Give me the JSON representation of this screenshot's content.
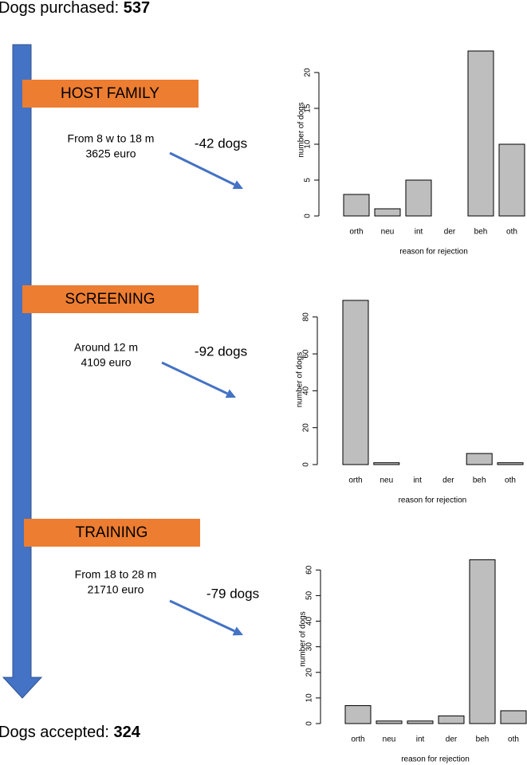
{
  "header": {
    "purchased_label": "Dogs purchased:",
    "purchased_value": "537"
  },
  "footer": {
    "accepted_label": "Dogs accepted:",
    "accepted_value": "324"
  },
  "stages": [
    {
      "title": "HOST FAMILY",
      "period": "From 8 w to 18 m",
      "cost": "3625 euro",
      "loss": "-42 dogs"
    },
    {
      "title": "SCREENING",
      "period": "Around 12 m",
      "cost": "4109 euro",
      "loss": "-92 dogs"
    },
    {
      "title": "TRAINING",
      "period": "From 18 to 28 m",
      "cost": "21710 euro",
      "loss": "-79 dogs"
    }
  ],
  "chart_data": [
    {
      "type": "bar",
      "categories": [
        "orth",
        "neu",
        "int",
        "der",
        "beh",
        "oth"
      ],
      "values": [
        3,
        1,
        5,
        0,
        23,
        10
      ],
      "color": "#bebebe",
      "ylim": [
        0,
        24
      ],
      "yticks": [
        0,
        5,
        10,
        15,
        20
      ],
      "y_label": "number of dogs",
      "x_label": "reason for rejection"
    },
    {
      "type": "bar",
      "categories": [
        "orth",
        "neu",
        "int",
        "der",
        "beh",
        "oth"
      ],
      "values": [
        89,
        1,
        0,
        0,
        6,
        1
      ],
      "color": "#bebebe",
      "ylim": [
        0,
        92
      ],
      "yticks": [
        0,
        20,
        40,
        60,
        80
      ],
      "y_label": "number of dogs",
      "x_label": "reason for rejection"
    },
    {
      "type": "bar",
      "categories": [
        "orth",
        "neu",
        "int",
        "der",
        "beh",
        "oth"
      ],
      "values": [
        7,
        1,
        1,
        3,
        64,
        5
      ],
      "color": "#bebebe",
      "ylim": [
        0,
        66
      ],
      "yticks": [
        0,
        10,
        20,
        30,
        40,
        50,
        60
      ],
      "y_label": "number of dogs",
      "x_label": "reason for rejection"
    }
  ]
}
